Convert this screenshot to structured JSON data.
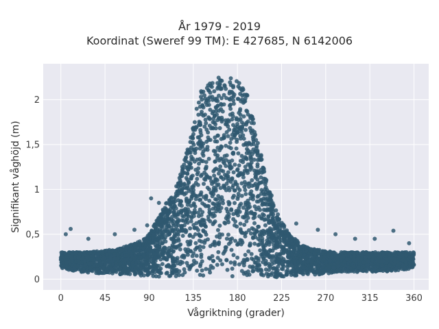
{
  "chart_data": {
    "type": "scatter",
    "title": "År 1979 - 2019",
    "subtitle": "Koordinat (Sweref 99 TM): E 427685, N 6142006",
    "xlabel": "Vågriktning (grader)",
    "ylabel": "Signifikant våghöjd (m)",
    "xlim": [
      -18,
      375
    ],
    "ylim": [
      -0.12,
      2.4
    ],
    "x_ticks": [
      0,
      45,
      90,
      135,
      180,
      225,
      270,
      315,
      360
    ],
    "y_ticks": [
      0,
      0.5,
      1,
      1.5,
      2
    ],
    "x_tick_labels": [
      "0",
      "45",
      "90",
      "135",
      "180",
      "225",
      "270",
      "315",
      "360"
    ],
    "y_tick_labels": [
      "0",
      "0,5",
      "1",
      "1,5",
      "2"
    ],
    "grid": true,
    "marker_color": "#2f5870",
    "plot_background": "#e9e9f1",
    "envelope": {
      "x": [
        0,
        20,
        45,
        60,
        80,
        90,
        100,
        110,
        120,
        130,
        135,
        140,
        150,
        160,
        170,
        180,
        190,
        200,
        210,
        220,
        225,
        230,
        245,
        260,
        280,
        300,
        330,
        360
      ],
      "y_max": [
        0.3,
        0.3,
        0.32,
        0.34,
        0.42,
        0.5,
        0.7,
        0.9,
        1.1,
        1.5,
        1.75,
        2.05,
        2.2,
        2.25,
        2.25,
        2.22,
        2.05,
        1.6,
        1.1,
        0.75,
        0.65,
        0.55,
        0.38,
        0.33,
        0.3,
        0.3,
        0.3,
        0.3
      ],
      "y_min": [
        0.12,
        0.08,
        0.06,
        0.05,
        0.04,
        0.03,
        0.02,
        0.02,
        0.02,
        0.02,
        0.02,
        0.02,
        0.02,
        0.02,
        0.02,
        0.02,
        0.02,
        0.02,
        0.02,
        0.02,
        0.02,
        0.03,
        0.04,
        0.05,
        0.07,
        0.08,
        0.08,
        0.12
      ]
    },
    "outliers": [
      {
        "x": 10,
        "y": 0.56
      },
      {
        "x": 5,
        "y": 0.5
      },
      {
        "x": 28,
        "y": 0.45
      },
      {
        "x": 55,
        "y": 0.5
      },
      {
        "x": 75,
        "y": 0.55
      },
      {
        "x": 88,
        "y": 0.6
      },
      {
        "x": 92,
        "y": 0.9
      },
      {
        "x": 100,
        "y": 0.85
      },
      {
        "x": 240,
        "y": 0.62
      },
      {
        "x": 232,
        "y": 0.5
      },
      {
        "x": 262,
        "y": 0.55
      },
      {
        "x": 280,
        "y": 0.5
      },
      {
        "x": 300,
        "y": 0.45
      },
      {
        "x": 320,
        "y": 0.45
      },
      {
        "x": 339,
        "y": 0.54
      },
      {
        "x": 355,
        "y": 0.4
      }
    ]
  }
}
